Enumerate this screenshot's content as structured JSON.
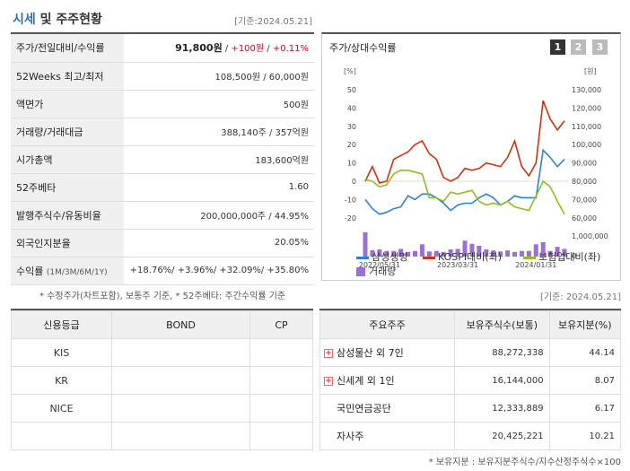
{
  "header": {
    "title_blue": "시세",
    "title_rest": " 및 주주현황",
    "date": "[기준:2024.05.21]"
  },
  "stats": [
    {
      "label": "주가/전일대비/수익률",
      "price": "91,800원",
      "sep1": " / ",
      "change": "+100원",
      "sep2": " / ",
      "rate": "+0.11%"
    },
    {
      "label": "52Weeks 최고/최저",
      "value": "108,500원 / 60,000원"
    },
    {
      "label": "액면가",
      "value": "500원"
    },
    {
      "label": "거래량/거래대금",
      "value": "388,140주 / 357억원"
    },
    {
      "label": "시가총액",
      "value": "183,600억원"
    },
    {
      "label": "52주베타",
      "value": "1.60"
    },
    {
      "label": "발행주식수/유동비율",
      "value": "200,000,000주 / 44.95%"
    },
    {
      "label": "외국인지분율",
      "value": "20.05%"
    },
    {
      "label": "수익률",
      "label_small": "(1M/3M/6M/1Y)",
      "value": "+18.76%/ +3.96%/ +32.09%/ +35.80%"
    }
  ],
  "note_left": "* 수정주가(차트포함), 보통주 기준, * 52주베타: 주간수익률 기준",
  "chart": {
    "title": "주가/상대수익률",
    "pages": [
      "1",
      "2",
      "3"
    ],
    "left_unit": "[%]",
    "right_unit": "[원]",
    "legend": {
      "samsung": "삼성생명",
      "kospi": "KOSPI대비(좌)",
      "insurance": "보험업대비(좌)",
      "volume": "거래량"
    },
    "colors": {
      "samsung": "#2f7fd8",
      "kospi": "#cc3311",
      "insurance": "#8fbf1f",
      "volume": "#9b6fd3"
    }
  },
  "chart_data": {
    "type": "line",
    "x_ticks": [
      "2022/05/31",
      "2023/03/31",
      "2024/01/31"
    ],
    "y_left_ticks": [
      "50",
      "40",
      "30",
      "20",
      "10",
      "0",
      "-10",
      "-20"
    ],
    "ylim_left": [
      -25,
      50
    ],
    "y_right_ticks": [
      "130,000",
      "120,000",
      "110,000",
      "100,000",
      "90,000",
      "80,000",
      "70,000",
      "60,000"
    ],
    "y_vol_ticks": [
      "1,000,000",
      "0"
    ],
    "series": [
      {
        "name": "삼성생명",
        "values": [
          -10,
          -15,
          -18,
          -17,
          -15,
          -14,
          -8,
          -10,
          -7,
          -7,
          -9,
          -12,
          -16,
          -13,
          -12,
          -12,
          -9,
          -7,
          -9,
          -13,
          -11,
          -8,
          -9,
          -9,
          -9,
          17,
          13,
          8,
          12
        ]
      },
      {
        "name": "KOSPI대비(좌)",
        "values": [
          0,
          8,
          -1,
          0,
          12,
          14,
          16,
          20,
          22,
          15,
          12,
          2,
          0,
          2,
          7,
          6,
          7,
          10,
          9,
          8,
          13,
          22,
          8,
          3,
          10,
          44,
          34,
          28,
          33
        ]
      },
      {
        "name": "보험업대비(좌)",
        "values": [
          1,
          0,
          -3,
          -2,
          4,
          6,
          6,
          5,
          4,
          -9,
          -9,
          -11,
          -6,
          -7,
          -6,
          -5,
          -11,
          -13,
          -12,
          -13,
          -11,
          -14,
          -15,
          -16,
          -8,
          0,
          -3,
          -11,
          -18
        ]
      }
    ],
    "volume": [
      95,
      25,
      28,
      22,
      22,
      30,
      18,
      22,
      48,
      20,
      22,
      18,
      28,
      30,
      62,
      50,
      42,
      28,
      24,
      20,
      24,
      18,
      22,
      22,
      48,
      56,
      22,
      38,
      30
    ]
  },
  "date2": "[기준: 2024.05.21]",
  "credit": {
    "headers": [
      "신용등급",
      "BOND",
      "CP"
    ],
    "rows": [
      [
        "KIS",
        "",
        ""
      ],
      [
        "KR",
        "",
        ""
      ],
      [
        "NICE",
        "",
        ""
      ],
      [
        "",
        "",
        ""
      ]
    ]
  },
  "holders": {
    "headers": [
      "주요주주",
      "보유주식수(보통)",
      "보유지분(%)"
    ],
    "rows": [
      {
        "name": "삼성물산 외 7인",
        "shares": "88,272,338",
        "pct": "44.14",
        "expand": true
      },
      {
        "name": "신세계 외 1인",
        "shares": "16,144,000",
        "pct": "8.07",
        "expand": true
      },
      {
        "name": "국민연금공단",
        "shares": "12,333,889",
        "pct": "6.17",
        "expand": false
      },
      {
        "name": "자사주",
        "shares": "20,425,221",
        "pct": "10.21",
        "expand": false
      }
    ]
  },
  "note_right": "* 보유지분 : 보유지분주식수/지수산정주식수×100"
}
